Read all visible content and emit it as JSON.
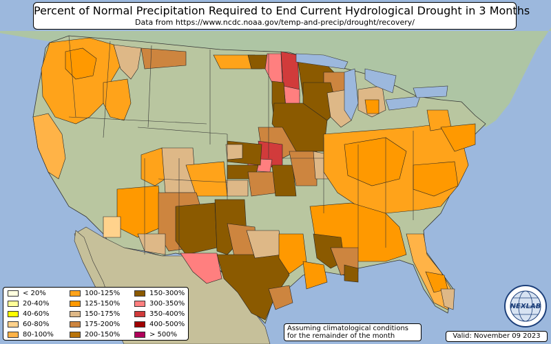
{
  "title": "Percent of Normal Precipitation Required to End Current Hydrological Drought in 3 Months",
  "subtitle": "Data from https://www.ncdc.noaa.gov/temp-and-precip/drought/recovery/",
  "legend": {
    "items": [
      {
        "label": "< 20%",
        "color": "#ffffe0"
      },
      {
        "label": "20-40%",
        "color": "#ffff99"
      },
      {
        "label": "40-60%",
        "color": "#ffff00"
      },
      {
        "label": "60-80%",
        "color": "#ffd28c"
      },
      {
        "label": "80-100%",
        "color": "#ffb347"
      },
      {
        "label": "100-125%",
        "color": "#ffa31a"
      },
      {
        "label": "125-150%",
        "color": "#ff9900"
      },
      {
        "label": "150-175%",
        "color": "#deb887"
      },
      {
        "label": "175-200%",
        "color": "#cd853f"
      },
      {
        "label": "200-150%",
        "color": "#b8730a"
      },
      {
        "label": "150-300%",
        "color": "#8b5a00"
      },
      {
        "label": "300-350%",
        "color": "#ff7f7f"
      },
      {
        "label": "350-400%",
        "color": "#d13b3b"
      },
      {
        "label": "400-500%",
        "color": "#a00000"
      },
      {
        "label": "> 500%",
        "color": "#b0005a"
      }
    ]
  },
  "note": {
    "line1": "Assuming climatological conditions",
    "line2": "for the remainder of the month"
  },
  "valid": "Valid: November 09 2023",
  "logo": {
    "text": "NEXLAB",
    "icon": "globe-icon"
  },
  "colors": {
    "ocean": "#9cb8dd",
    "land": "#b9c6a0",
    "mexico": "#c6c09a",
    "canada": "#aec5a4"
  }
}
